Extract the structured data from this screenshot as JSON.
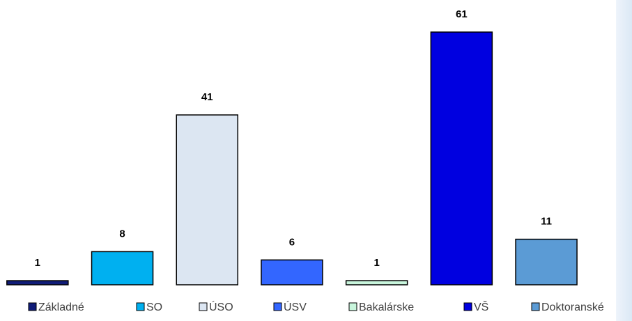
{
  "chart_data": {
    "type": "bar",
    "categories": [
      "Základné",
      "SO",
      "ÚSO",
      "ÚSV",
      "Bakalárske",
      "VŠ",
      "Doktoranské"
    ],
    "values": [
      1,
      8,
      41,
      6,
      1,
      61,
      11
    ],
    "colors": [
      "#101c78",
      "#00b0f0",
      "#dce6f2",
      "#3366ff",
      "#c8f5dc",
      "#0000e0",
      "#5b9bd5"
    ],
    "legend": "bottom"
  }
}
